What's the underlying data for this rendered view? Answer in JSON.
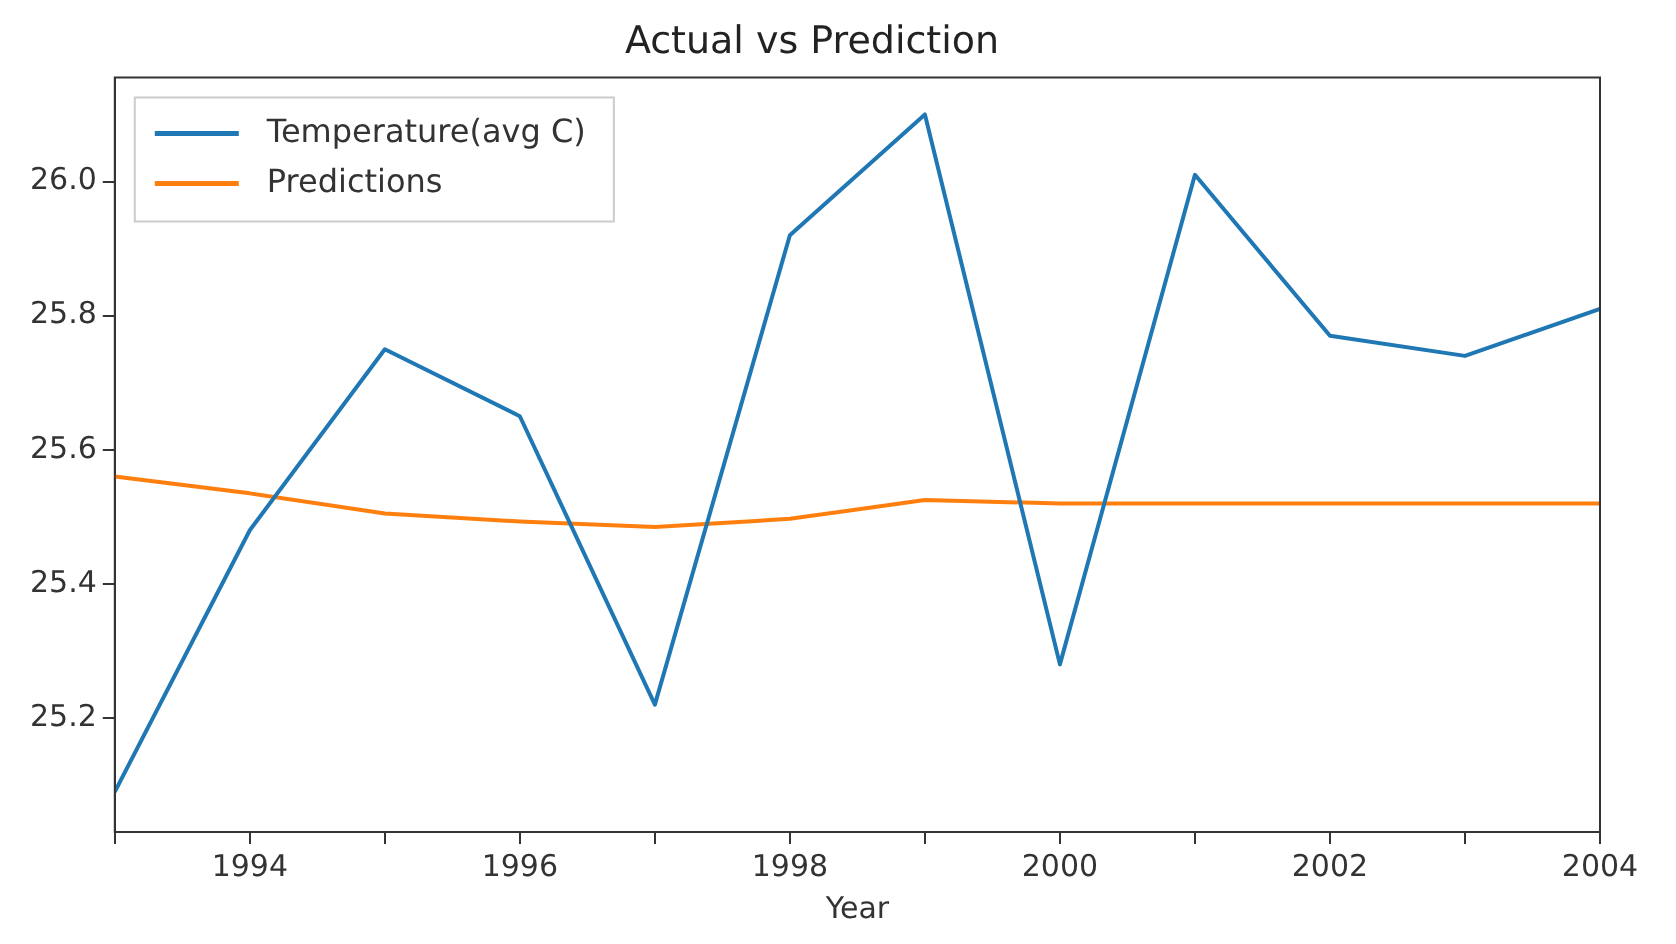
{
  "chart_data": {
    "type": "line",
    "title": "Actual vs Prediction",
    "xlabel": "Year",
    "x": [
      1993,
      1994,
      1995,
      1996,
      1997,
      1998,
      1999,
      2000,
      2001,
      2002,
      2003,
      2004
    ],
    "series": [
      {
        "name": "Temperature(avg C)",
        "color": "#1f77b4",
        "values": [
          25.09,
          25.48,
          25.75,
          25.65,
          25.22,
          25.92,
          26.1,
          25.28,
          26.01,
          25.77,
          25.74,
          25.81
        ]
      },
      {
        "name": "Predictions",
        "color": "#ff7f0e",
        "values": [
          25.56,
          25.535,
          25.505,
          25.493,
          25.485,
          25.497,
          25.525,
          25.52,
          25.52,
          25.52,
          25.52,
          25.52
        ]
      }
    ],
    "xlim": [
      1993,
      2004
    ],
    "xticks": [
      {
        "value": 1993,
        "label": null
      },
      1994,
      {
        "value": 1995,
        "label": null
      },
      1996,
      {
        "value": 1997,
        "label": null
      },
      1998,
      {
        "value": 1999,
        "label": null
      },
      2000,
      {
        "value": 2001,
        "label": null
      },
      2002,
      {
        "value": 2003,
        "label": null
      },
      2004
    ],
    "ylim": [
      25.03,
      26.155
    ],
    "yticks": [
      {
        "value": 25.2,
        "label": "25.2"
      },
      {
        "value": 25.4,
        "label": "25.4"
      },
      {
        "value": 25.6,
        "label": "25.6"
      },
      {
        "value": 25.8,
        "label": "25.8"
      },
      {
        "value": 26.0,
        "label": "26.0"
      }
    ],
    "grid": false,
    "legend": "top left",
    "marker": "none",
    "line_style": "solid"
  }
}
